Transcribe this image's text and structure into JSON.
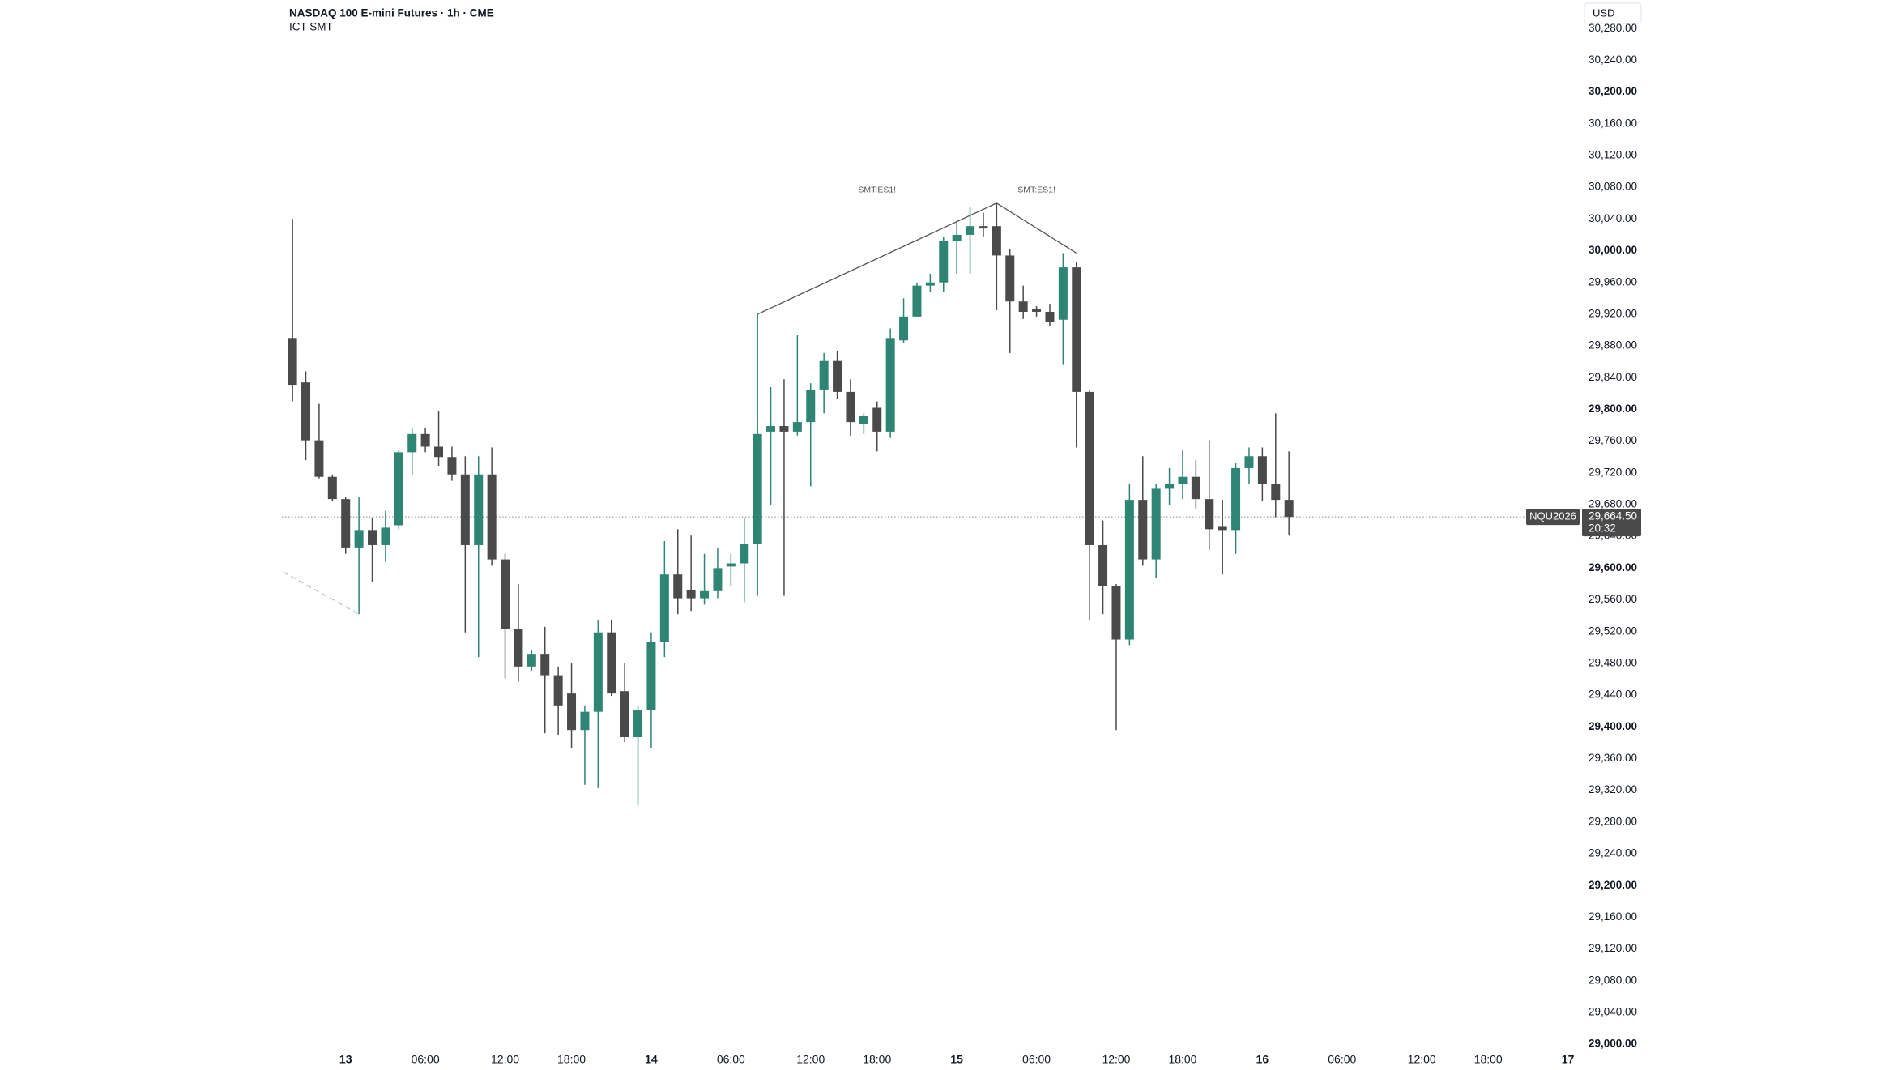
{
  "chart_data": {
    "type": "candlestick",
    "title": "NASDAQ 100 E-mini Futures · 1h · CME",
    "subtitle": "ICT SMT",
    "currency": "USD",
    "up_color": "#2e8573",
    "down_color": "#4a4a4a",
    "open": [
      29890,
      29834,
      29761,
      29715,
      29687,
      29626,
      29648,
      29629,
      29654,
      29746,
      29769,
      29753,
      29740,
      29718,
      29629,
      29718,
      29611,
      29523,
      29476,
      29491,
      29465,
      29442,
      29396,
      29419,
      29519,
      29445,
      29387,
      29421,
      29507,
      29592,
      29572,
      29562,
      29571,
      29602,
      29606,
      29631,
      29772,
      29779,
      29772,
      29784,
      29825,
      29861,
      29822,
      29782,
      29802,
      29772,
      29887,
      29917,
      29956,
      29960,
      30012,
      30020,
      30031,
      30031,
      29994,
      29936,
      29926,
      29923,
      29913,
      29979,
      29822,
      29629,
      29577,
      29510,
      29686,
      29611,
      29700,
      29706,
      29715,
      29687,
      29652,
      29648,
      29726,
      29741,
      29706,
      29686
    ],
    "high": [
      30040,
      29848,
      29807,
      29718,
      29690,
      29690,
      29664,
      29672,
      29749,
      29776,
      29776,
      29798,
      29753,
      29741,
      29741,
      29752,
      29618,
      29580,
      29496,
      29526,
      29476,
      29480,
      29427,
      29534,
      29534,
      29480,
      29427,
      29519,
      29634,
      29649,
      29641,
      29618,
      29626,
      29618,
      29664,
      29920,
      29828,
      29838,
      29894,
      29833,
      29871,
      29874,
      29838,
      29795,
      29810,
      29902,
      29940,
      29960,
      29971,
      30017,
      30037,
      30055,
      30048,
      30060,
      30002,
      29956,
      29930,
      29933,
      29997,
      29986,
      29825,
      29660,
      29580,
      29706,
      29741,
      29706,
      29726,
      29749,
      29736,
      29761,
      29686,
      29733,
      29752,
      29752,
      29795,
      29747
    ],
    "low": [
      29810,
      29736,
      29713,
      29684,
      29618,
      29542,
      29583,
      29608,
      29649,
      29718,
      29746,
      29729,
      29710,
      29519,
      29488,
      29603,
      29461,
      29457,
      29470,
      29392,
      29389,
      29373,
      29327,
      29323,
      29439,
      29381,
      29301,
      29373,
      29488,
      29542,
      29546,
      29554,
      29562,
      29577,
      29557,
      29565,
      29680,
      29565,
      29767,
      29703,
      29795,
      29813,
      29767,
      29769,
      29747,
      29764,
      29884,
      29917,
      29948,
      29948,
      29971,
      29971,
      30017,
      29925,
      29871,
      29914,
      29917,
      29905,
      29856,
      29752,
      29534,
      29542,
      29396,
      29503,
      29603,
      29588,
      29680,
      29687,
      29675,
      29623,
      29592,
      29618,
      29706,
      29684,
      29664,
      29641
    ],
    "close": [
      29831,
      29761,
      29715,
      29687,
      29626,
      29648,
      29629,
      29651,
      29746,
      29769,
      29753,
      29740,
      29718,
      29629,
      29718,
      29611,
      29523,
      29476,
      29491,
      29465,
      29427,
      29396,
      29419,
      29519,
      29442,
      29387,
      29421,
      29507,
      29592,
      29562,
      29562,
      29571,
      29600,
      29606,
      29631,
      29769,
      29779,
      29772,
      29784,
      29825,
      29861,
      29822,
      29784,
      29792,
      29772,
      29890,
      29917,
      29956,
      29960,
      30012,
      30020,
      30031,
      30028,
      29994,
      29936,
      29923,
      29923,
      29910,
      29979,
      29822,
      29629,
      29577,
      29510,
      29686,
      29611,
      29700,
      29706,
      29715,
      29687,
      29649,
      29648,
      29726,
      29741,
      29706,
      29686,
      29664.5
    ],
    "xlim": [
      -0.8,
      97
    ],
    "xticks": [
      {
        "value": 4,
        "label": "13"
      },
      {
        "value": 10,
        "label": "06:00"
      },
      {
        "value": 16,
        "label": "12:00"
      },
      {
        "value": 21,
        "label": "18:00"
      },
      {
        "value": 27,
        "label": "14"
      },
      {
        "value": 33,
        "label": "06:00"
      },
      {
        "value": 39,
        "label": "12:00"
      },
      {
        "value": 44,
        "label": "18:00"
      },
      {
        "value": 50,
        "label": "15"
      },
      {
        "value": 56,
        "label": "06:00"
      },
      {
        "value": 62,
        "label": "12:00"
      },
      {
        "value": 67,
        "label": "18:00"
      },
      {
        "value": 73,
        "label": "16"
      },
      {
        "value": 79,
        "label": "06:00"
      },
      {
        "value": 85,
        "label": "12:00"
      },
      {
        "value": 90,
        "label": "18:00"
      },
      {
        "value": 96,
        "label": "17"
      }
    ],
    "ylim": [
      28995,
      30316
    ],
    "yticks": [
      {
        "value": 29000,
        "label": "29,000.00"
      },
      {
        "value": 29040,
        "label": "29,040.00"
      },
      {
        "value": 29080,
        "label": "29,080.00"
      },
      {
        "value": 29120,
        "label": "29,120.00"
      },
      {
        "value": 29160,
        "label": "29,160.00"
      },
      {
        "value": 29200,
        "label": "29,200.00"
      },
      {
        "value": 29240,
        "label": "29,240.00"
      },
      {
        "value": 29280,
        "label": "29,280.00"
      },
      {
        "value": 29320,
        "label": "29,320.00"
      },
      {
        "value": 29360,
        "label": "29,360.00"
      },
      {
        "value": 29400,
        "label": "29,400.00"
      },
      {
        "value": 29440,
        "label": "29,440.00"
      },
      {
        "value": 29480,
        "label": "29,480.00"
      },
      {
        "value": 29520,
        "label": "29,520.00"
      },
      {
        "value": 29560,
        "label": "29,560.00"
      },
      {
        "value": 29600,
        "label": "29,600.00"
      },
      {
        "value": 29640,
        "label": "29,640.00"
      },
      {
        "value": 29680,
        "label": "29,680.00"
      },
      {
        "value": 29720,
        "label": "29,720.00"
      },
      {
        "value": 29760,
        "label": "29,760.00"
      },
      {
        "value": 29800,
        "label": "29,800.00"
      },
      {
        "value": 29840,
        "label": "29,840.00"
      },
      {
        "value": 29880,
        "label": "29,880.00"
      },
      {
        "value": 29920,
        "label": "29,920.00"
      },
      {
        "value": 29960,
        "label": "29,960.00"
      },
      {
        "value": 30000,
        "label": "30,000.00"
      },
      {
        "value": 30040,
        "label": "30,040.00"
      },
      {
        "value": 30080,
        "label": "30,080.00"
      },
      {
        "value": 30120,
        "label": "30,120.00"
      },
      {
        "value": 30160,
        "label": "30,160.00"
      },
      {
        "value": 30200,
        "label": "30,200.00"
      },
      {
        "value": 30240,
        "label": "30,240.00"
      },
      {
        "value": 30280,
        "label": "30,280.00"
      }
    ],
    "grid": false,
    "last_price": {
      "value": 29664.5,
      "label": "29,664.50",
      "symbol": "NQU2026",
      "countdown": "20:32"
    },
    "annotations": [
      {
        "label": "SMT:ES1!",
        "x": [
          35,
          53
        ],
        "y": [
          29920,
          30060
        ]
      },
      {
        "label": "SMT:ES1!",
        "x": [
          53,
          59
        ],
        "y": [
          30060,
          29997
        ]
      },
      {
        "x": [
          -0.7,
          5
        ],
        "y": [
          29595,
          29542
        ],
        "dashed": true
      }
    ]
  }
}
